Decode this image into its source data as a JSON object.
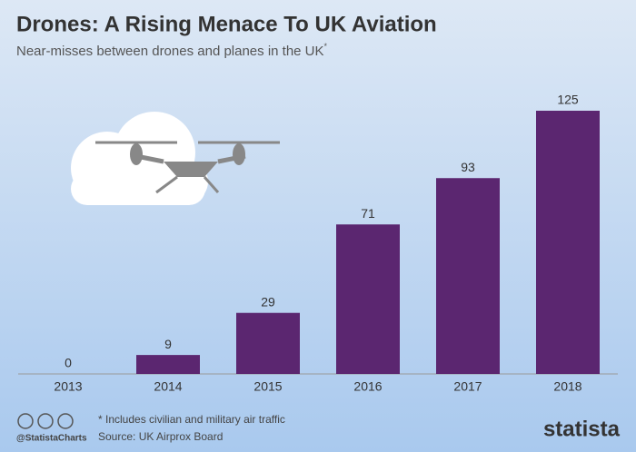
{
  "chart_data": {
    "type": "bar",
    "title": "Drones: A Rising Menace To UK Aviation",
    "subtitle": "Near-misses between drones and planes in the UK",
    "subtitle_marker": "*",
    "categories": [
      "2013",
      "2014",
      "2015",
      "2016",
      "2017",
      "2018"
    ],
    "values": [
      0,
      9,
      29,
      71,
      93,
      125
    ],
    "color": "#5b2670",
    "footnote": "* Includes civilian and military air traffic",
    "source": "Source: UK Airprox Board",
    "handle": "@StatistaCharts",
    "brand": "statista"
  }
}
